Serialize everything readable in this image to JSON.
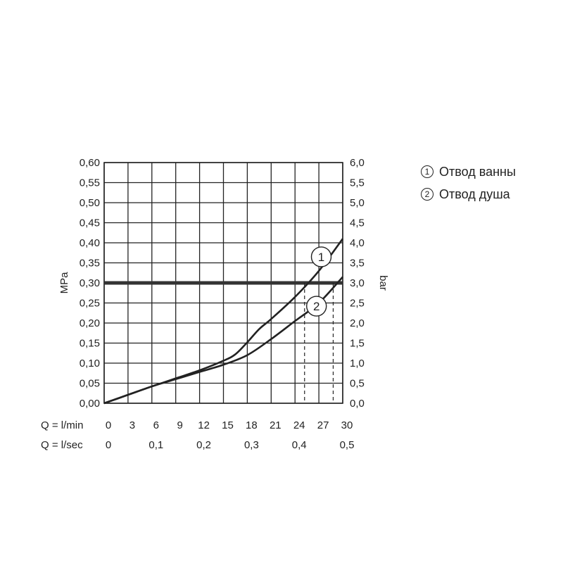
{
  "chart_data": {
    "type": "line",
    "left_axis": {
      "label": "MPa",
      "ylim": [
        0,
        0.6
      ],
      "ticks": [
        "0,00",
        "0,05",
        "0,10",
        "0,15",
        "0,20",
        "0,25",
        "0,30",
        "0,35",
        "0,40",
        "0,45",
        "0,50",
        "0,55",
        "0,60"
      ]
    },
    "right_axis": {
      "label": "bar",
      "ylim": [
        0,
        6
      ],
      "ticks": [
        "0,0",
        "0,5",
        "1,0",
        "1,5",
        "2,0",
        "2,5",
        "3,0",
        "3,5",
        "4,0",
        "4,5",
        "5,0",
        "5,5",
        "6,0"
      ]
    },
    "x_axis_primary": {
      "label": "Q = l/min",
      "xlim": [
        0,
        30
      ],
      "ticks": [
        "0",
        "3",
        "6",
        "9",
        "12",
        "15",
        "18",
        "21",
        "24",
        "27",
        "30"
      ]
    },
    "x_axis_secondary": {
      "label": "Q = l/sec",
      "ticks": [
        {
          "value": 0,
          "label": "0"
        },
        {
          "value": 0.1,
          "label": "0,1"
        },
        {
          "value": 0.2,
          "label": "0,2"
        },
        {
          "value": 0.3,
          "label": "0,3"
        },
        {
          "value": 0.4,
          "label": "0,4"
        },
        {
          "value": 0.5,
          "label": "0,5"
        }
      ]
    },
    "grid": true,
    "reference_line": {
      "y": 0.3
    },
    "series": [
      {
        "name": "Отвод ванны",
        "marker": "1",
        "x": [
          0,
          3,
          6,
          9,
          12,
          15,
          16.5,
          18,
          19.5,
          21,
          24,
          27,
          30
        ],
        "y": [
          0,
          0.021,
          0.042,
          0.062,
          0.082,
          0.106,
          0.122,
          0.152,
          0.185,
          0.21,
          0.265,
          0.33,
          0.41
        ],
        "marker_at": {
          "x": 27.3,
          "y": 0.365
        },
        "drop_x": 25.2
      },
      {
        "name": "Отвод душа",
        "marker": "2",
        "x": [
          0,
          3,
          6,
          9,
          12,
          15,
          18,
          21,
          24,
          27,
          30
        ],
        "y": [
          0,
          0.021,
          0.042,
          0.06,
          0.078,
          0.096,
          0.12,
          0.16,
          0.205,
          0.25,
          0.315
        ],
        "marker_at": {
          "x": 26.7,
          "y": 0.242
        },
        "drop_x": 28.8
      }
    ],
    "legend": [
      {
        "marker": "1",
        "label": "Отвод ванны"
      },
      {
        "marker": "2",
        "label": "Отвод душа"
      }
    ]
  }
}
